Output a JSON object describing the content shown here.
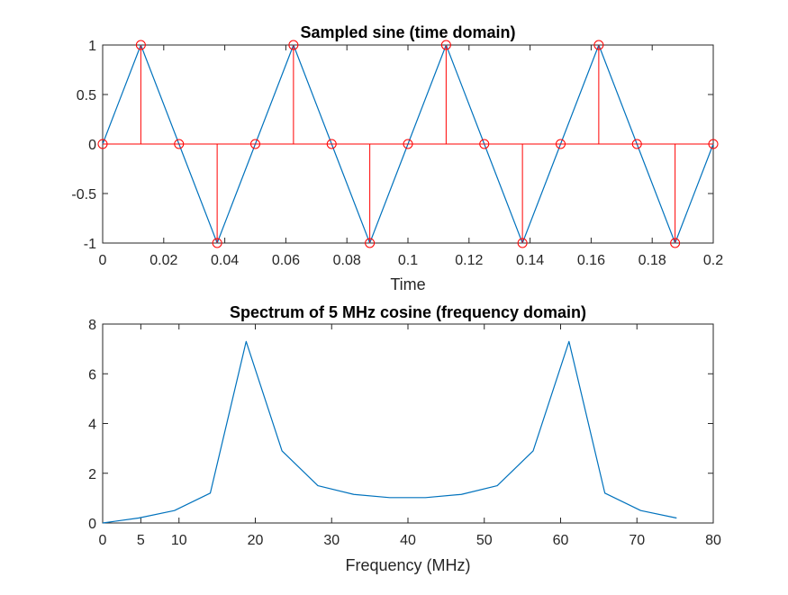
{
  "figure": {
    "background": "#ffffff"
  },
  "chart_data": [
    {
      "type": "line",
      "title": "Sampled sine (time domain)",
      "xlabel": "Time",
      "ylabel": "",
      "xlim": [
        0,
        0.2
      ],
      "ylim": [
        -1,
        1
      ],
      "xticks": [
        0,
        0.02,
        0.04,
        0.06,
        0.08,
        0.1,
        0.12,
        0.14,
        0.16,
        0.18,
        0.2
      ],
      "xtick_labels": [
        "0",
        "0.02",
        "0.04",
        "0.06",
        "0.08",
        "0.1",
        "0.12",
        "0.14",
        "0.16",
        "0.18",
        "0.2"
      ],
      "yticks": [
        -1,
        -0.5,
        0,
        0.5,
        1
      ],
      "ytick_labels": [
        "-1",
        "-0.5",
        "0",
        "0.5",
        "1"
      ],
      "grid": false,
      "x": [
        0,
        0.0125,
        0.025,
        0.0375,
        0.05,
        0.0625,
        0.075,
        0.0875,
        0.1,
        0.1125,
        0.125,
        0.1375,
        0.15,
        0.1625,
        0.175,
        0.1875,
        0.2
      ],
      "series": [
        {
          "style": "line",
          "color": "#0072BD",
          "values": [
            0,
            1,
            0,
            -1,
            0,
            1,
            0,
            -1,
            0,
            1,
            0,
            -1,
            0,
            1,
            0,
            -1,
            0
          ]
        },
        {
          "style": "stem",
          "color": "#FF0000",
          "marker": "circle",
          "values": [
            0,
            1,
            0,
            -1,
            0,
            1,
            0,
            -1,
            0,
            1,
            0,
            -1,
            0,
            1,
            0,
            -1,
            0
          ]
        }
      ]
    },
    {
      "type": "line",
      "title": "Spectrum of 5 MHz cosine (frequency domain)",
      "xlabel": "Frequency (MHz)",
      "ylabel": "",
      "xlim": [
        0,
        80
      ],
      "ylim": [
        0,
        8
      ],
      "xticks": [
        0,
        5,
        10,
        20,
        30,
        40,
        50,
        60,
        70,
        80
      ],
      "xtick_labels": [
        "0",
        "5",
        "10",
        "20",
        "30",
        "40",
        "50",
        "60",
        "70",
        "80"
      ],
      "yticks": [
        0,
        2,
        4,
        6,
        8
      ],
      "ytick_labels": [
        "0",
        "2",
        "4",
        "6",
        "8"
      ],
      "grid": false,
      "x": [
        0,
        4.7,
        9.4,
        14.1,
        18.8,
        23.5,
        28.2,
        32.9,
        37.6,
        42.3,
        47,
        51.7,
        56.4,
        61.1,
        65.8,
        70.5,
        75.2
      ],
      "series": [
        {
          "style": "line",
          "color": "#0072BD",
          "values": [
            0,
            0.2,
            0.5,
            1.2,
            7.3,
            2.9,
            1.5,
            1.15,
            1.02,
            1.02,
            1.15,
            1.5,
            2.9,
            7.3,
            1.2,
            0.5,
            0.2
          ]
        }
      ]
    }
  ]
}
